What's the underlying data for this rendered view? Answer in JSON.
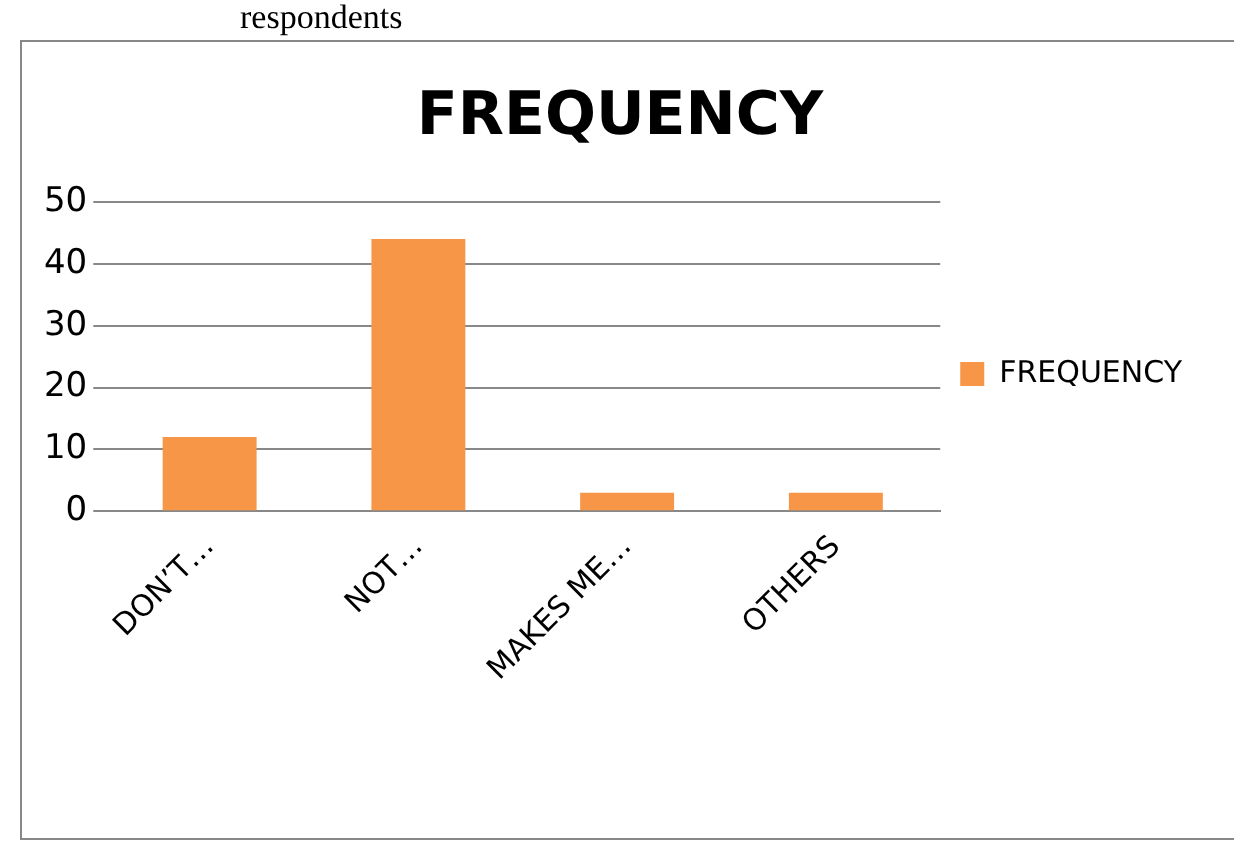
{
  "chart_data": {
    "type": "bar",
    "title": "FREQUENCY",
    "annotations": [
      "respondents"
    ],
    "categories": [
      "DON’T…",
      "NOT…",
      "MAKES ME…",
      "OTHERS"
    ],
    "series": [
      {
        "name": "FREQUENCY",
        "color": "#f79646",
        "values": [
          12,
          44,
          3,
          3
        ]
      }
    ],
    "ylim": [
      0,
      50
    ],
    "yticks": [
      0,
      10,
      20,
      30,
      40,
      50
    ],
    "grid": "y",
    "legend": "right"
  }
}
